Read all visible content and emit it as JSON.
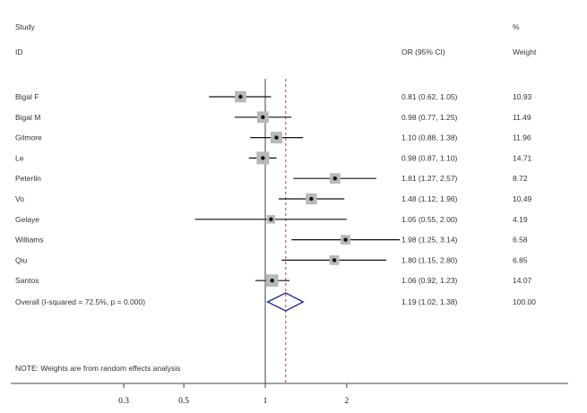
{
  "chart_data": {
    "type": "forest",
    "headers": {
      "study_top": "Study",
      "study_bottom": "ID",
      "or_col": "OR (95% CI)",
      "weight_top": "%",
      "weight_bottom": "Weight"
    },
    "studies": [
      {
        "id": "Bigal F",
        "or": 0.81,
        "lo": 0.62,
        "hi": 1.05,
        "label": "0.81 (0.62, 1.05)",
        "weight": 10.93,
        "weight_label": "10.93"
      },
      {
        "id": "Bigal M",
        "or": 0.98,
        "lo": 0.77,
        "hi": 1.25,
        "label": "0.98 (0.77, 1.25)",
        "weight": 11.49,
        "weight_label": "11.49"
      },
      {
        "id": "Gilmore",
        "or": 1.1,
        "lo": 0.88,
        "hi": 1.38,
        "label": "1.10 (0.88, 1.38)",
        "weight": 11.96,
        "weight_label": "11.96"
      },
      {
        "id": "Le",
        "or": 0.98,
        "lo": 0.87,
        "hi": 1.1,
        "label": "0.98 (0.87, 1.10)",
        "weight": 14.71,
        "weight_label": "14.71"
      },
      {
        "id": "Peterlin",
        "or": 1.81,
        "lo": 1.27,
        "hi": 2.57,
        "label": "1.81 (1.27, 2.57)",
        "weight": 8.72,
        "weight_label": "8.72"
      },
      {
        "id": "Vo",
        "or": 1.48,
        "lo": 1.12,
        "hi": 1.96,
        "label": "1.48 (1.12, 1.96)",
        "weight": 10.49,
        "weight_label": "10.49"
      },
      {
        "id": "Gelaye",
        "or": 1.05,
        "lo": 0.55,
        "hi": 2.0,
        "label": "1.05 (0.55, 2.00)",
        "weight": 4.19,
        "weight_label": "4.19"
      },
      {
        "id": "Williams",
        "or": 1.98,
        "lo": 1.25,
        "hi": 3.14,
        "label": "1.98 (1.25, 3.14)",
        "weight": 6.58,
        "weight_label": "6.58"
      },
      {
        "id": "Qiu",
        "or": 1.8,
        "lo": 1.15,
        "hi": 2.8,
        "label": "1.80 (1.15, 2.80)",
        "weight": 6.85,
        "weight_label": "6.85"
      },
      {
        "id": "Santos",
        "or": 1.06,
        "lo": 0.92,
        "hi": 1.23,
        "label": "1.06 (0.92, 1.23)",
        "weight": 14.07,
        "weight_label": "14.07"
      }
    ],
    "overall": {
      "id": "Overall  (I-squared = 72.5%, p = 0.000)",
      "or": 1.19,
      "lo": 1.02,
      "hi": 1.38,
      "label": "1.19 (1.02, 1.38)",
      "weight_label": "100.00"
    },
    "note": "NOTE: Weights are from random effects analysis",
    "x_scale": "log",
    "null_value": 1,
    "x_ticks": [
      0.3,
      0.5,
      1,
      2
    ],
    "x_tick_labels": [
      "0.3",
      "0.5",
      "1",
      "2"
    ],
    "colors": {
      "diamond": "#1f2e8c",
      "null_line": "#777777",
      "overall_line": "#c0392b",
      "ci_line": "#111111",
      "box": "#b8b8b8"
    }
  }
}
